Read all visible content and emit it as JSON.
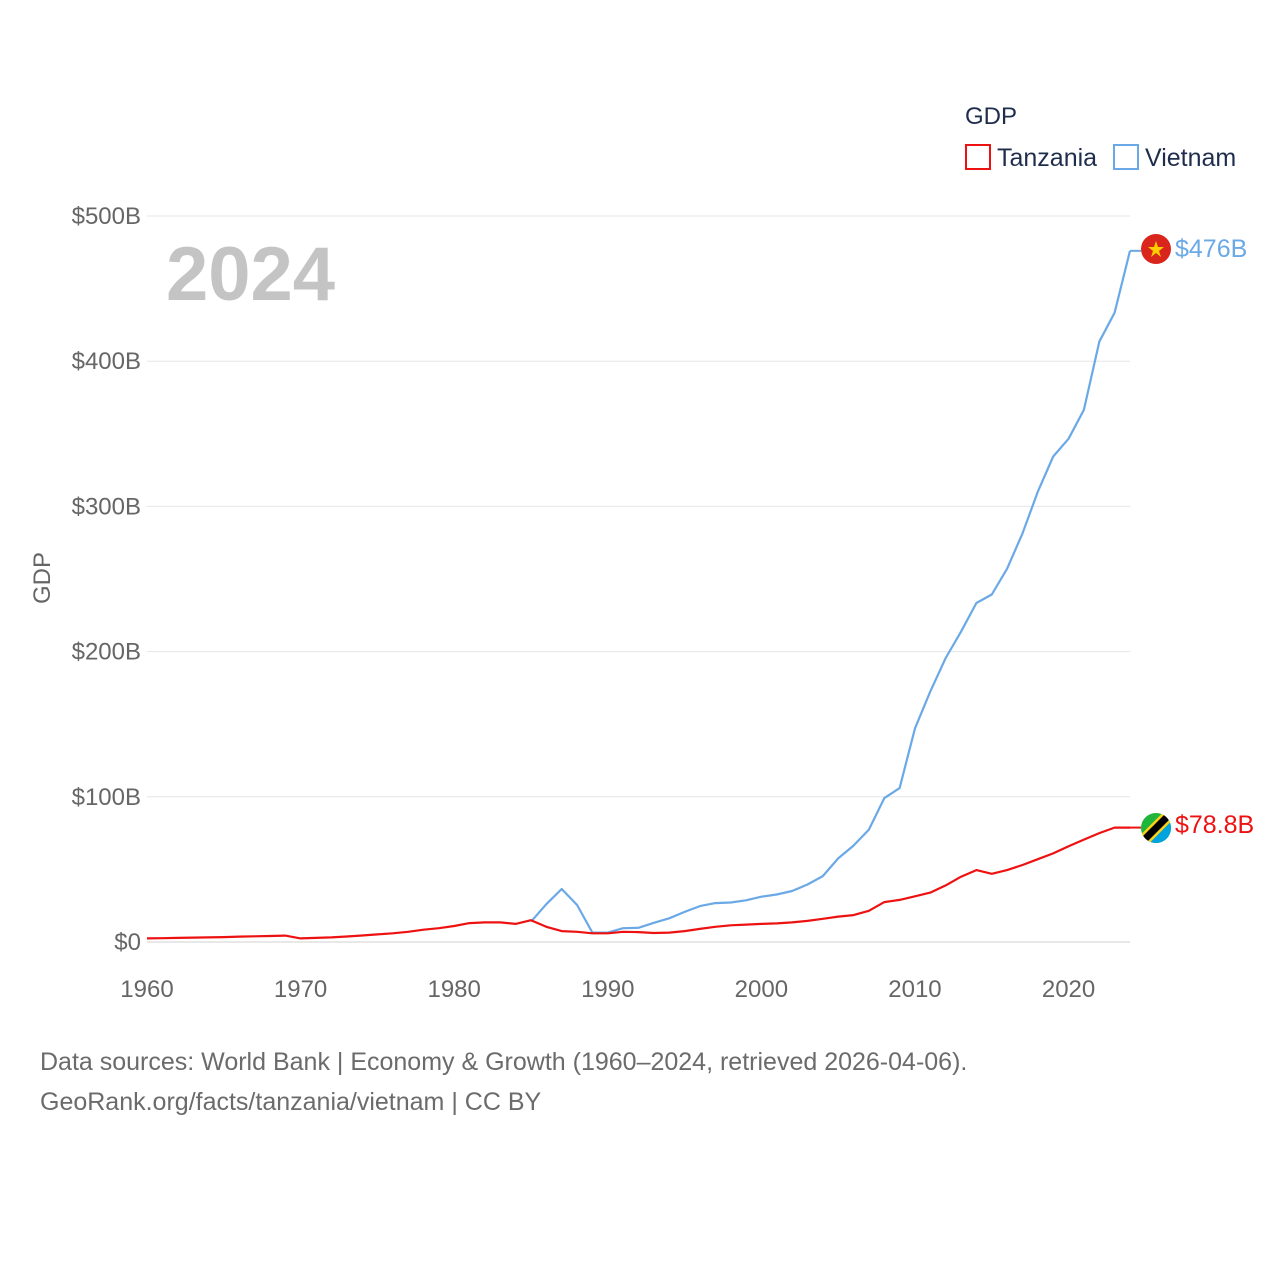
{
  "chart_data": {
    "type": "line",
    "title": "2024",
    "ylabel": "GDP",
    "xlabel": "",
    "xlim": [
      1960,
      2024
    ],
    "ylim": [
      0,
      500
    ],
    "y_unit": "billion USD",
    "x_ticks": [
      "1960",
      "1970",
      "1980",
      "1990",
      "2000",
      "2010",
      "2020"
    ],
    "y_ticks": [
      {
        "value": 0,
        "label": "$0"
      },
      {
        "value": 100,
        "label": "$100B"
      },
      {
        "value": 200,
        "label": "$200B"
      },
      {
        "value": 300,
        "label": "$300B"
      },
      {
        "value": 400,
        "label": "$400B"
      },
      {
        "value": 500,
        "label": "$500B"
      }
    ],
    "grid": true,
    "legend": {
      "title": "GDP",
      "position": "top-right"
    },
    "series": [
      {
        "name": "Tanzania",
        "color": "#ee1111",
        "end_label": "$78.8B",
        "x": [
          1960,
          1961,
          1962,
          1963,
          1964,
          1965,
          1966,
          1967,
          1968,
          1969,
          1970,
          1971,
          1972,
          1973,
          1974,
          1975,
          1976,
          1977,
          1978,
          1979,
          1980,
          1981,
          1982,
          1983,
          1984,
          1985,
          1986,
          1987,
          1988,
          1989,
          1990,
          1991,
          1992,
          1993,
          1994,
          1995,
          1996,
          1997,
          1998,
          1999,
          2000,
          2001,
          2002,
          2003,
          2004,
          2005,
          2006,
          2007,
          2008,
          2009,
          2010,
          2011,
          2012,
          2013,
          2014,
          2015,
          2016,
          2017,
          2018,
          2019,
          2020,
          2021,
          2022,
          2023,
          2024
        ],
        "values": [
          2.5,
          2.6,
          2.8,
          3.0,
          3.2,
          3.4,
          3.7,
          3.9,
          4.1,
          4.4,
          2.5,
          2.8,
          3.2,
          3.8,
          4.5,
          5.2,
          6.0,
          7.0,
          8.5,
          9.5,
          11.0,
          13.0,
          13.5,
          13.5,
          12.5,
          15.0,
          10.5,
          7.5,
          7.0,
          6.0,
          6.0,
          7.0,
          6.8,
          6.2,
          6.5,
          7.5,
          9.0,
          10.5,
          11.5,
          12.0,
          12.5,
          12.8,
          13.5,
          14.5,
          16.0,
          17.5,
          18.5,
          21.5,
          27.5,
          29.0,
          31.5,
          34.0,
          39.0,
          45.0,
          49.5,
          47.0,
          49.5,
          53.0,
          57.0,
          61.0,
          66.0,
          70.5,
          75.0,
          78.8,
          78.8
        ]
      },
      {
        "name": "Vietnam",
        "color": "#6aa9e6",
        "end_label": "$476B",
        "x": [
          1985,
          1986,
          1987,
          1988,
          1989,
          1990,
          1991,
          1992,
          1993,
          1994,
          1995,
          1996,
          1997,
          1998,
          1999,
          2000,
          2001,
          2002,
          2003,
          2004,
          2005,
          2006,
          2007,
          2008,
          2009,
          2010,
          2011,
          2012,
          2013,
          2014,
          2015,
          2016,
          2017,
          2018,
          2019,
          2020,
          2021,
          2022,
          2023,
          2024
        ],
        "values": [
          14.0,
          26.0,
          36.5,
          25.5,
          6.5,
          6.5,
          9.5,
          9.8,
          13.2,
          16.3,
          20.7,
          24.7,
          26.8,
          27.2,
          28.7,
          31.2,
          32.7,
          35.1,
          39.6,
          45.4,
          57.6,
          66.4,
          77.4,
          99.1,
          106.0,
          147.2,
          172.6,
          195.6,
          213.7,
          233.5,
          239.3,
          257.1,
          281.4,
          310.1,
          334.4,
          346.6,
          366.5,
          413.4,
          433.4,
          476.0
        ]
      }
    ]
  },
  "footer": {
    "sources": "Data sources: World Bank | Economy & Growth (1960–2024, retrieved 2026-04-06).",
    "credit": "GeoRank.org/facts/tanzania/vietnam | CC BY"
  }
}
